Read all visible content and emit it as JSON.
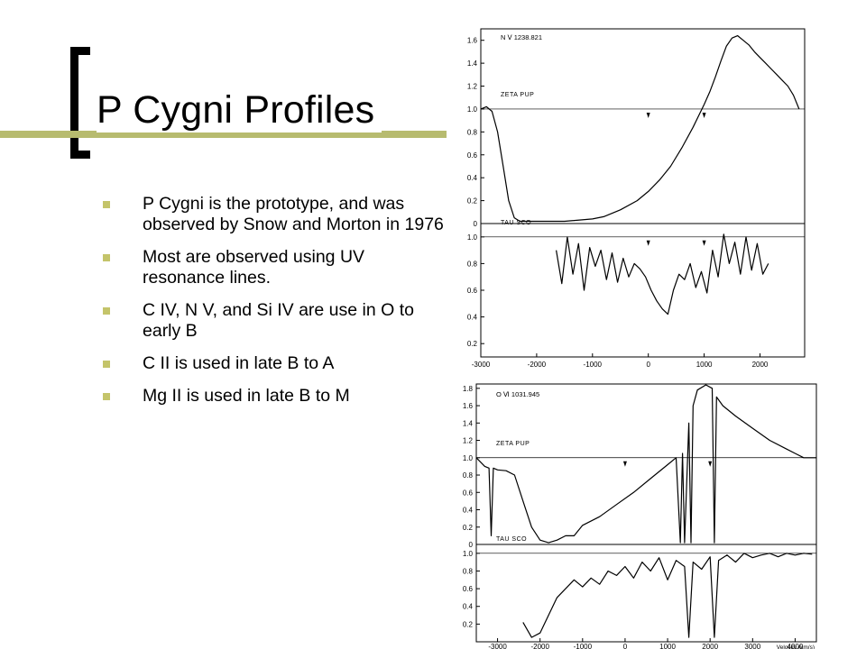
{
  "slide": {
    "title": "P Cygni Profiles",
    "bullets": [
      "P Cygni is the prototype, and was observed by Snow and Morton in 1976",
      "Most are observed using UV resonance lines.",
      "C IV, N V, and Si IV are use in O to early B",
      "C II is used in late B to A",
      "Mg II is used in late B to M"
    ]
  },
  "colors": {
    "accent_bar": "#b7bb6f",
    "bullet": "#c4c46a",
    "ink": "#000000"
  },
  "chart_data": [
    {
      "type": "line",
      "line_label": "N Ⅴ  1238.821",
      "xlim": [
        -3000,
        2800
      ],
      "xticks": [
        -3000,
        -2000,
        -1000,
        0,
        1000,
        2000
      ],
      "xtick_labels": [
        "-3000",
        "-2000",
        "-1000",
        "0",
        "1000",
        "2000"
      ],
      "panels": [
        {
          "star": "ZETA PUP",
          "ylim": [
            0,
            1.7
          ],
          "yticks": [
            0,
            0.2,
            0.4,
            0.6,
            0.8,
            1.0,
            1.2,
            1.4,
            1.6
          ],
          "ytick_labels": [
            "0",
            "0.2",
            "0.4",
            "0.6",
            "0.8",
            "1.0",
            "1.2",
            "1.4",
            "1.6"
          ],
          "continuum": 1.0,
          "markers_x": [
            0,
            1000
          ],
          "x": [
            -3000,
            -2900,
            -2800,
            -2700,
            -2600,
            -2500,
            -2400,
            -2300,
            -2000,
            -1500,
            -1000,
            -800,
            -500,
            -200,
            0,
            200,
            400,
            600,
            800,
            1000,
            1100,
            1200,
            1300,
            1400,
            1500,
            1600,
            1700,
            1800,
            1900,
            2000,
            2100,
            2200,
            2300,
            2400,
            2500,
            2600,
            2700
          ],
          "y": [
            1.0,
            1.02,
            0.98,
            0.8,
            0.5,
            0.2,
            0.05,
            0.02,
            0.02,
            0.02,
            0.04,
            0.06,
            0.12,
            0.2,
            0.28,
            0.38,
            0.5,
            0.66,
            0.84,
            1.04,
            1.15,
            1.28,
            1.42,
            1.55,
            1.62,
            1.64,
            1.6,
            1.56,
            1.5,
            1.45,
            1.4,
            1.35,
            1.3,
            1.25,
            1.2,
            1.12,
            1.0
          ]
        },
        {
          "star": "TAU SCO",
          "ylim": [
            0.1,
            1.1
          ],
          "yticks": [
            0.2,
            0.4,
            0.6,
            0.8,
            1.0
          ],
          "ytick_labels": [
            "0.2",
            "0.4",
            "0.6",
            "0.8",
            "1.0"
          ],
          "continuum": 1.0,
          "markers_x": [
            0,
            1000
          ],
          "x": [
            -1650,
            -1550,
            -1450,
            -1350,
            -1250,
            -1150,
            -1050,
            -950,
            -850,
            -750,
            -650,
            -550,
            -450,
            -350,
            -250,
            -150,
            -50,
            50,
            150,
            250,
            350,
            450,
            550,
            650,
            750,
            850,
            950,
            1050,
            1150,
            1250,
            1350,
            1450,
            1550,
            1650,
            1750,
            1850,
            1950,
            2050,
            2150
          ],
          "y": [
            0.9,
            0.65,
            1.0,
            0.72,
            0.95,
            0.6,
            0.92,
            0.78,
            0.9,
            0.68,
            0.88,
            0.66,
            0.84,
            0.7,
            0.8,
            0.76,
            0.7,
            0.6,
            0.52,
            0.46,
            0.42,
            0.6,
            0.72,
            0.68,
            0.8,
            0.62,
            0.74,
            0.58,
            0.9,
            0.7,
            1.02,
            0.8,
            0.96,
            0.72,
            1.0,
            0.75,
            0.95,
            0.72,
            0.8
          ]
        }
      ]
    },
    {
      "type": "line",
      "line_label": "O Ⅵ  1031.945",
      "xlabel": "Velocity (km/s)",
      "xlim": [
        -3500,
        4500
      ],
      "xticks": [
        -3000,
        -2000,
        -1000,
        0,
        1000,
        2000,
        3000,
        4000
      ],
      "xtick_labels": [
        "-3000",
        "-2000",
        "-1000",
        "0",
        "1000",
        "2000",
        "3000",
        "4000"
      ],
      "panels": [
        {
          "star": "ZETA PUP",
          "ylim": [
            0,
            1.85
          ],
          "yticks": [
            0,
            0.2,
            0.4,
            0.6,
            0.8,
            1.0,
            1.2,
            1.4,
            1.6,
            1.8
          ],
          "ytick_labels": [
            "0",
            "0.2",
            "0.4",
            "0.6",
            "0.8",
            "1.0",
            "1.2",
            "1.4",
            "1.6",
            "1.8"
          ],
          "continuum": 1.0,
          "markers_x": [
            0,
            2000
          ],
          "x": [
            -3500,
            -3300,
            -3200,
            -3150,
            -3100,
            -3000,
            -2800,
            -2600,
            -2400,
            -2200,
            -2000,
            -1800,
            -1600,
            -1400,
            -1200,
            -1000,
            -600,
            -200,
            200,
            600,
            1000,
            1200,
            1300,
            1350,
            1400,
            1500,
            1550,
            1600,
            1700,
            1900,
            2050,
            2100,
            2150,
            2300,
            2600,
            3000,
            3400,
            3800,
            4000,
            4200,
            4400,
            4500
          ],
          "y": [
            1.0,
            0.9,
            0.88,
            0.1,
            0.88,
            0.86,
            0.85,
            0.8,
            0.5,
            0.2,
            0.05,
            0.02,
            0.05,
            0.1,
            0.1,
            0.22,
            0.32,
            0.46,
            0.6,
            0.76,
            0.92,
            1.0,
            0.02,
            1.05,
            0.02,
            1.4,
            0.02,
            1.6,
            1.78,
            1.85,
            1.8,
            0.02,
            1.7,
            1.6,
            1.48,
            1.34,
            1.2,
            1.1,
            1.05,
            1.0,
            1.0,
            1.0
          ]
        },
        {
          "star": "TAU SCO",
          "ylim": [
            0,
            1.1
          ],
          "yticks": [
            0.2,
            0.4,
            0.6,
            0.8,
            1.0
          ],
          "ytick_labels": [
            "0.2",
            "0.4",
            "0.6",
            "0.8",
            "1.0"
          ],
          "continuum": 1.0,
          "markers_x": [],
          "x": [
            -2400,
            -2200,
            -2000,
            -1800,
            -1600,
            -1400,
            -1200,
            -1000,
            -800,
            -600,
            -400,
            -200,
            0,
            200,
            400,
            600,
            800,
            1000,
            1200,
            1400,
            1500,
            1600,
            1800,
            2000,
            2100,
            2200,
            2400,
            2600,
            2800,
            3000,
            3200,
            3400,
            3600,
            3800,
            4000,
            4200,
            4400
          ],
          "y": [
            0.22,
            0.05,
            0.1,
            0.3,
            0.5,
            0.6,
            0.7,
            0.62,
            0.72,
            0.65,
            0.8,
            0.75,
            0.85,
            0.72,
            0.9,
            0.8,
            0.95,
            0.7,
            0.92,
            0.85,
            0.05,
            0.9,
            0.82,
            0.96,
            0.05,
            0.92,
            0.98,
            0.9,
            1.0,
            0.95,
            0.98,
            1.0,
            0.96,
            1.0,
            0.98,
            1.0,
            0.99
          ]
        }
      ]
    }
  ]
}
